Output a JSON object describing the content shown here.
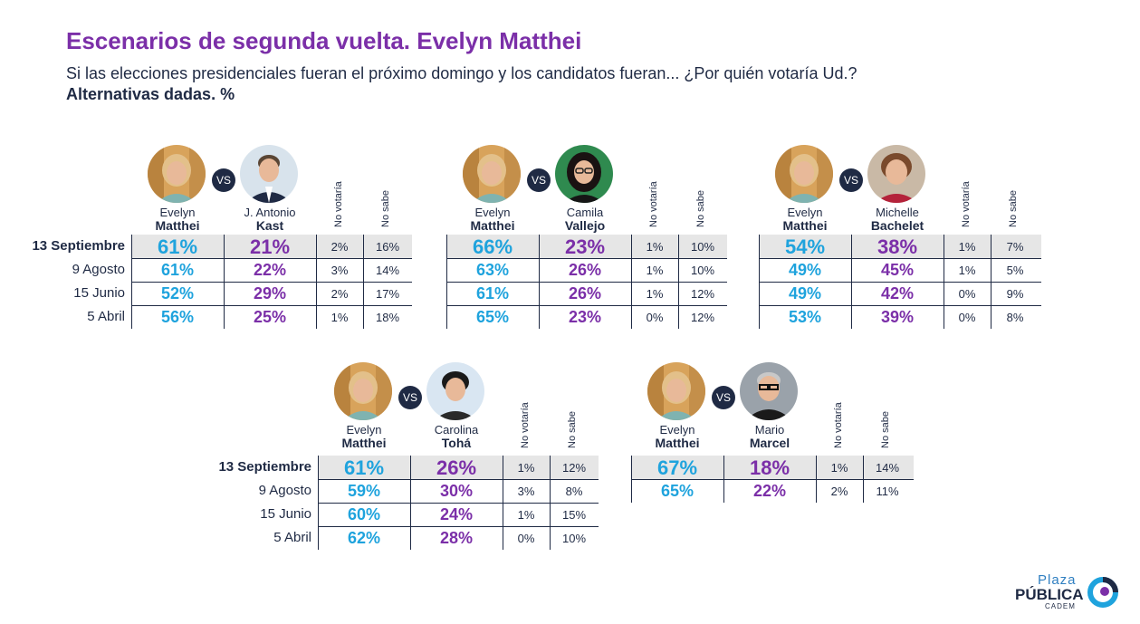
{
  "header": {
    "title": "Escenarios de segunda vuelta. Evelyn Matthei",
    "subtitle": "Si las elecciones presidenciales fueran el próximo domingo y los candidatos fueran... ¿Por quién votaría Ud.?",
    "unit_note": "Alternativas dadas. %"
  },
  "labels": {
    "vs": "VS",
    "no_votaria": "No votaría",
    "no_sabe": "No sabe"
  },
  "colors": {
    "matthei": "#1fa3dd",
    "rival": "#7b2fa8",
    "title": "#7b2fa8",
    "highlight": "#e6e6e6",
    "text": "#1f2a44"
  },
  "panels": [
    {
      "c1_first": "Evelyn",
      "c1_last": "Matthei",
      "c2_first": "J. Antonio",
      "c2_last": "Kast",
      "rows": [
        {
          "label": "13 Septiembre",
          "v1": "61%",
          "v2": "21%",
          "nv": "2%",
          "ns": "16%"
        },
        {
          "label": "9 Agosto",
          "v1": "61%",
          "v2": "22%",
          "nv": "3%",
          "ns": "14%"
        },
        {
          "label": "15 Junio",
          "v1": "52%",
          "v2": "29%",
          "nv": "2%",
          "ns": "17%"
        },
        {
          "label": "5 Abril",
          "v1": "56%",
          "v2": "25%",
          "nv": "1%",
          "ns": "18%"
        }
      ]
    },
    {
      "c1_first": "Evelyn",
      "c1_last": "Matthei",
      "c2_first": "Camila",
      "c2_last": "Vallejo",
      "rows": [
        {
          "v1": "66%",
          "v2": "23%",
          "nv": "1%",
          "ns": "10%"
        },
        {
          "v1": "63%",
          "v2": "26%",
          "nv": "1%",
          "ns": "10%"
        },
        {
          "v1": "61%",
          "v2": "26%",
          "nv": "1%",
          "ns": "12%"
        },
        {
          "v1": "65%",
          "v2": "23%",
          "nv": "0%",
          "ns": "12%"
        }
      ]
    },
    {
      "c1_first": "Evelyn",
      "c1_last": "Matthei",
      "c2_first": "Michelle",
      "c2_last": "Bachelet",
      "rows": [
        {
          "v1": "54%",
          "v2": "38%",
          "nv": "1%",
          "ns": "7%"
        },
        {
          "v1": "49%",
          "v2": "45%",
          "nv": "1%",
          "ns": "5%"
        },
        {
          "v1": "49%",
          "v2": "42%",
          "nv": "0%",
          "ns": "9%"
        },
        {
          "v1": "53%",
          "v2": "39%",
          "nv": "0%",
          "ns": "8%"
        }
      ]
    },
    {
      "c1_first": "Evelyn",
      "c1_last": "Matthei",
      "c2_first": "Carolina",
      "c2_last": "Tohá",
      "rows": [
        {
          "label": "13 Septiembre",
          "v1": "61%",
          "v2": "26%",
          "nv": "1%",
          "ns": "12%"
        },
        {
          "label": "9 Agosto",
          "v1": "59%",
          "v2": "30%",
          "nv": "3%",
          "ns": "8%"
        },
        {
          "label": "15 Junio",
          "v1": "60%",
          "v2": "24%",
          "nv": "1%",
          "ns": "15%"
        },
        {
          "label": "5 Abril",
          "v1": "62%",
          "v2": "28%",
          "nv": "0%",
          "ns": "10%"
        }
      ]
    },
    {
      "c1_first": "Evelyn",
      "c1_last": "Matthei",
      "c2_first": "Mario",
      "c2_last": "Marcel",
      "rows": [
        {
          "v1": "67%",
          "v2": "18%",
          "nv": "1%",
          "ns": "14%"
        },
        {
          "v1": "65%",
          "v2": "22%",
          "nv": "2%",
          "ns": "11%"
        }
      ]
    }
  ],
  "logo": {
    "line1": "Plaza",
    "line2": "PÚBLICA",
    "line3": "CADEM"
  }
}
